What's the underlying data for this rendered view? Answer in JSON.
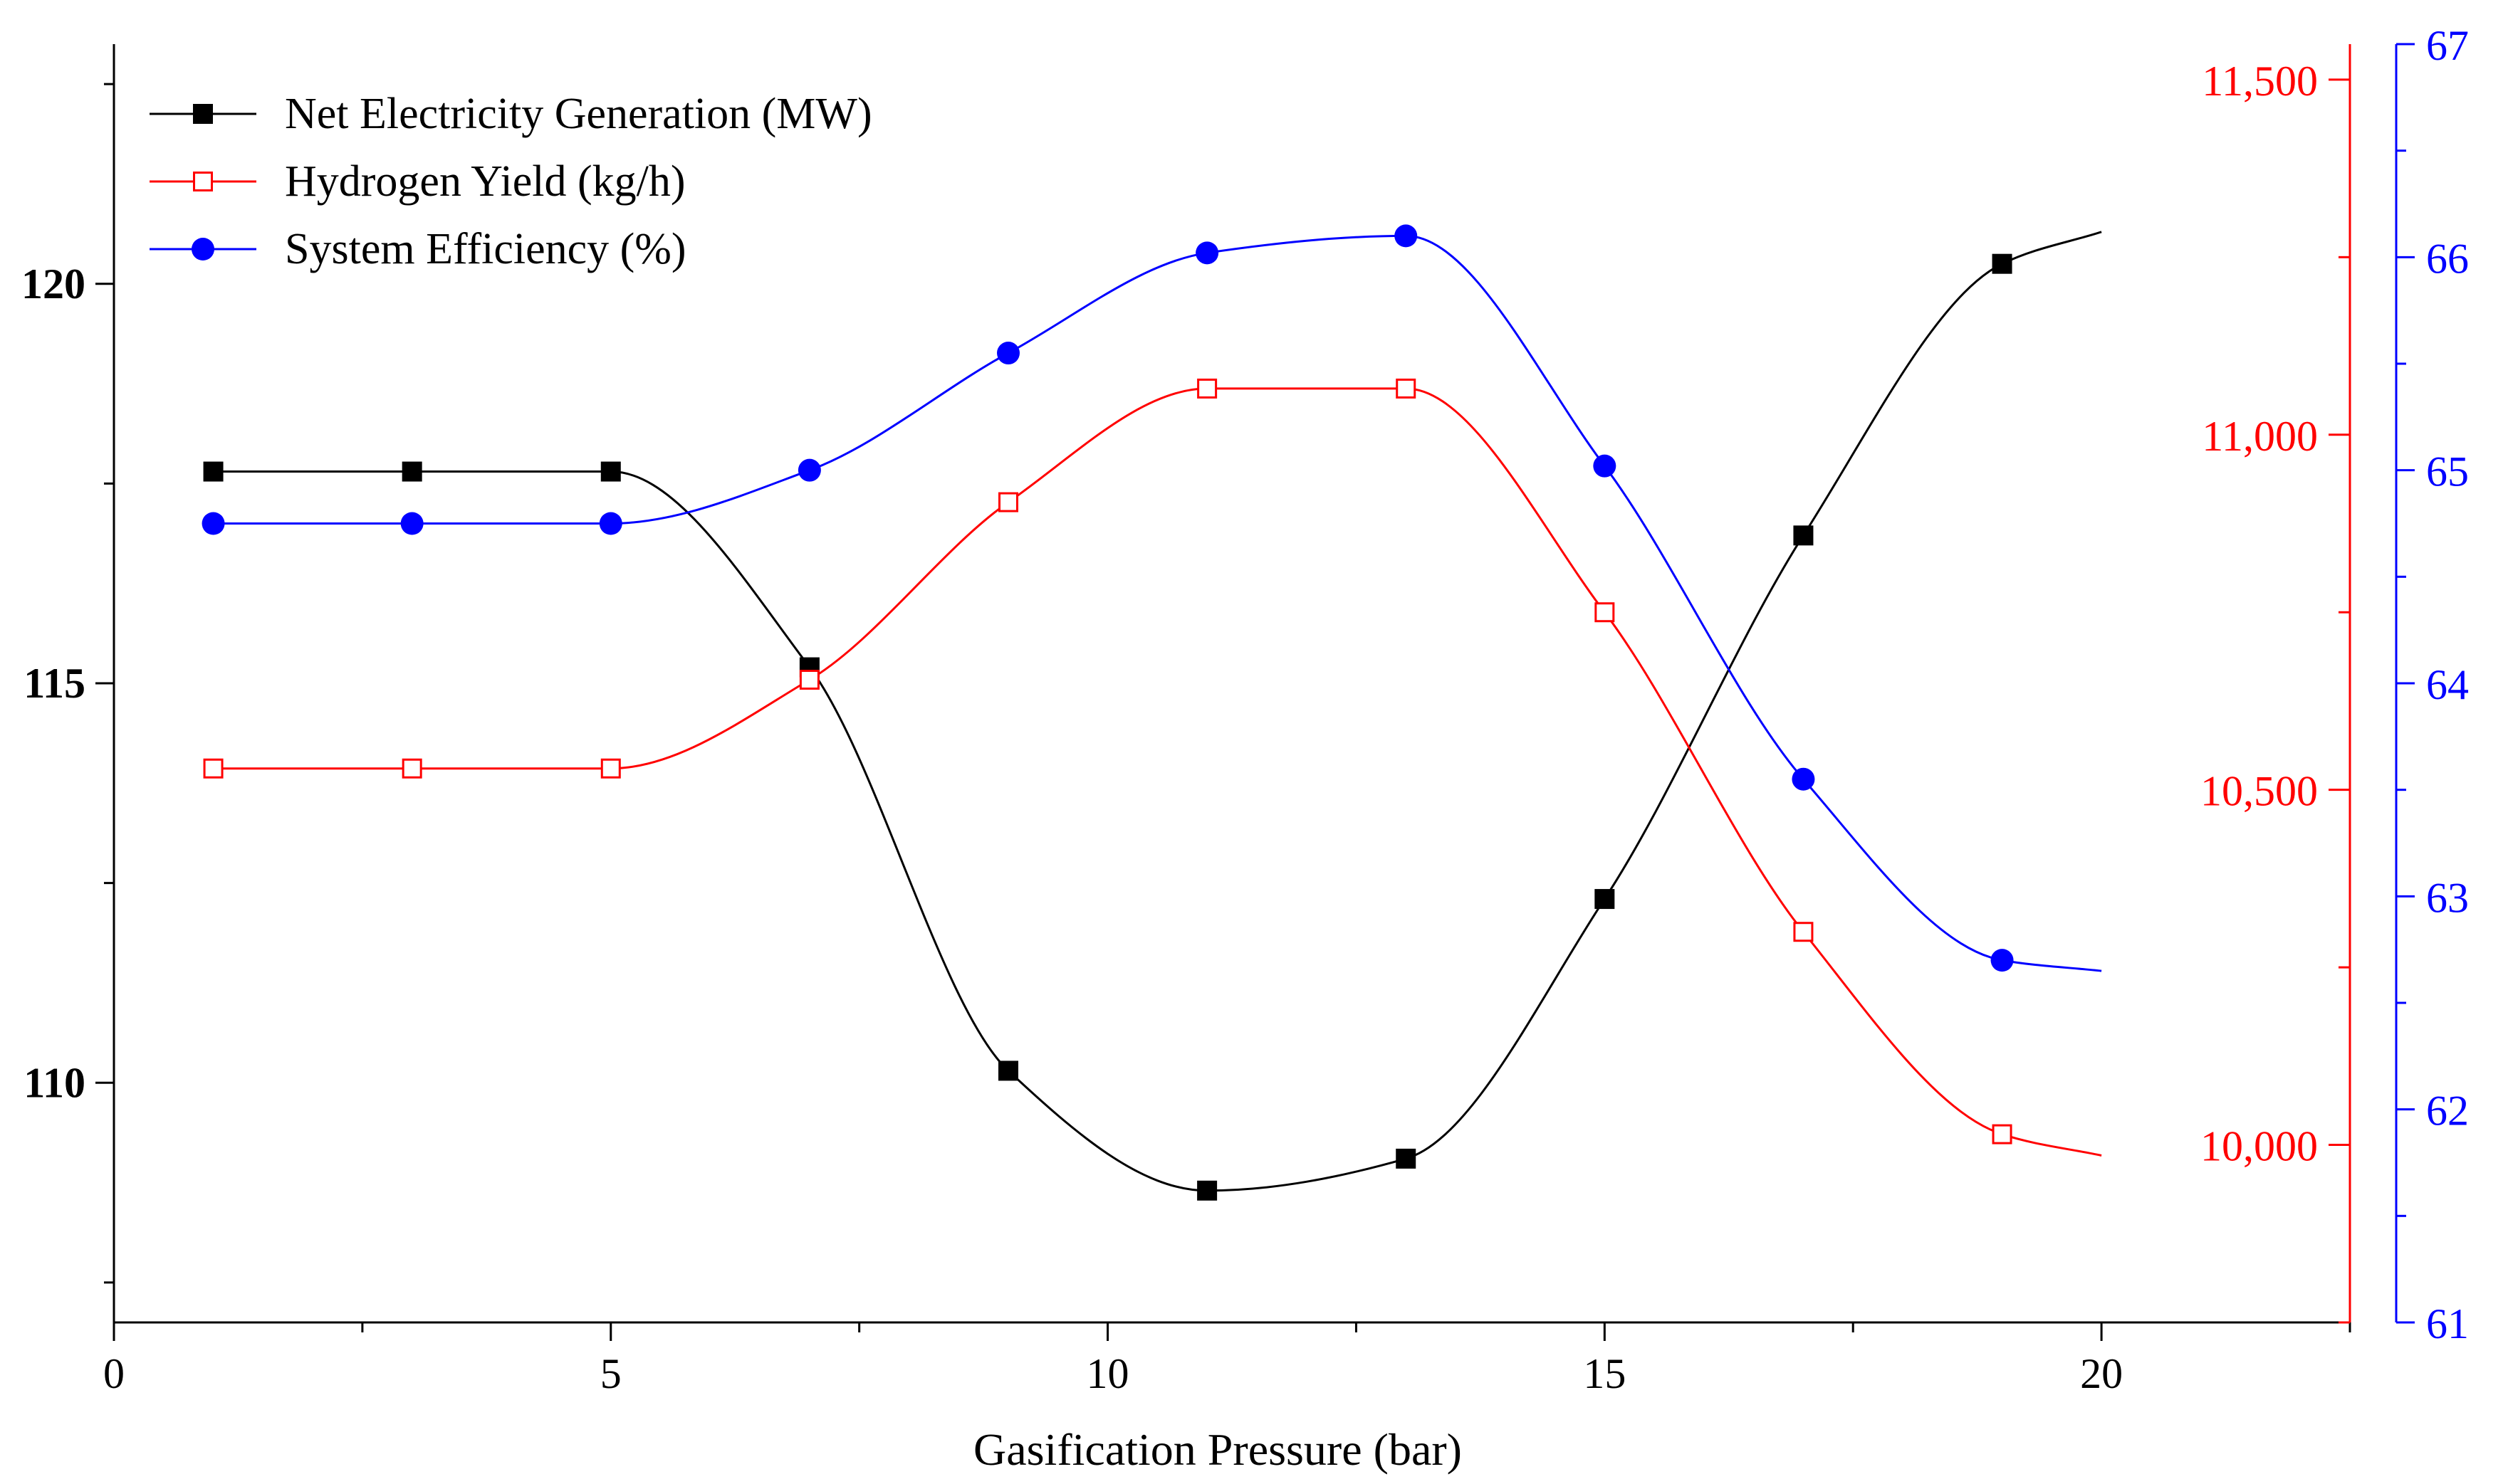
{
  "chart_data": {
    "type": "line",
    "title": "",
    "xlabel": "Gasification Pressure (bar)",
    "xlim": [
      0,
      22.5
    ],
    "xticks": [
      0,
      5,
      10,
      15,
      20
    ],
    "xtick_labels": [
      "0",
      "5",
      "10",
      "15",
      "20"
    ],
    "y_left": {
      "label": "",
      "lim": [
        107.0,
        123.0
      ],
      "ticks": [
        110,
        115,
        120
      ],
      "tick_labels": [
        "110",
        "115",
        "120"
      ],
      "color": "#000000"
    },
    "y_right_red": {
      "label": "",
      "lim": [
        9750,
        11550
      ],
      "ticks": [
        10000,
        10500,
        11000,
        11500
      ],
      "tick_labels": [
        "10,000",
        "10,500",
        "11,000",
        "11,500"
      ],
      "color": "#ff0000"
    },
    "y_right_blue": {
      "label": "",
      "lim": [
        61,
        67
      ],
      "ticks": [
        61,
        62,
        63,
        64,
        65,
        66,
        67
      ],
      "tick_labels": [
        "61",
        "62",
        "63",
        "64",
        "65",
        "66",
        "67"
      ],
      "color": "#0000ff"
    },
    "grid": false,
    "legend_position": "top-left",
    "series": [
      {
        "name": "Net Electricity Generation (MW)",
        "axis": "left",
        "color": "#000000",
        "marker": "filled-square",
        "x": [
          1,
          3,
          5,
          7,
          9,
          11,
          13,
          15,
          17,
          19
        ],
        "y": [
          117.65,
          117.65,
          117.65,
          115.2,
          110.15,
          108.65,
          109.05,
          112.3,
          116.85,
          120.25
        ],
        "curve_end": {
          "x": 20,
          "y": 120.65
        }
      },
      {
        "name": "Hydrogen Yield (kg/h)",
        "axis": "right_red",
        "color": "#ff0000",
        "marker": "hollow-square",
        "x": [
          1,
          3,
          5,
          7,
          9,
          11,
          13,
          15,
          17,
          19
        ],
        "y": [
          10530,
          10530,
          10530,
          10655,
          10905,
          11065,
          11065,
          10750,
          10300,
          10015
        ],
        "curve_end": {
          "x": 20,
          "y": 9985
        }
      },
      {
        "name": "System Efficiency (%)",
        "axis": "right_blue",
        "color": "#0000ff",
        "marker": "filled-circle",
        "x": [
          1,
          3,
          5,
          7,
          9,
          11,
          13,
          15,
          17,
          19
        ],
        "y": [
          64.75,
          64.75,
          64.75,
          65.0,
          65.55,
          66.02,
          66.1,
          65.02,
          63.55,
          62.7
        ],
        "curve_end": {
          "x": 20,
          "y": 62.65
        }
      }
    ]
  }
}
